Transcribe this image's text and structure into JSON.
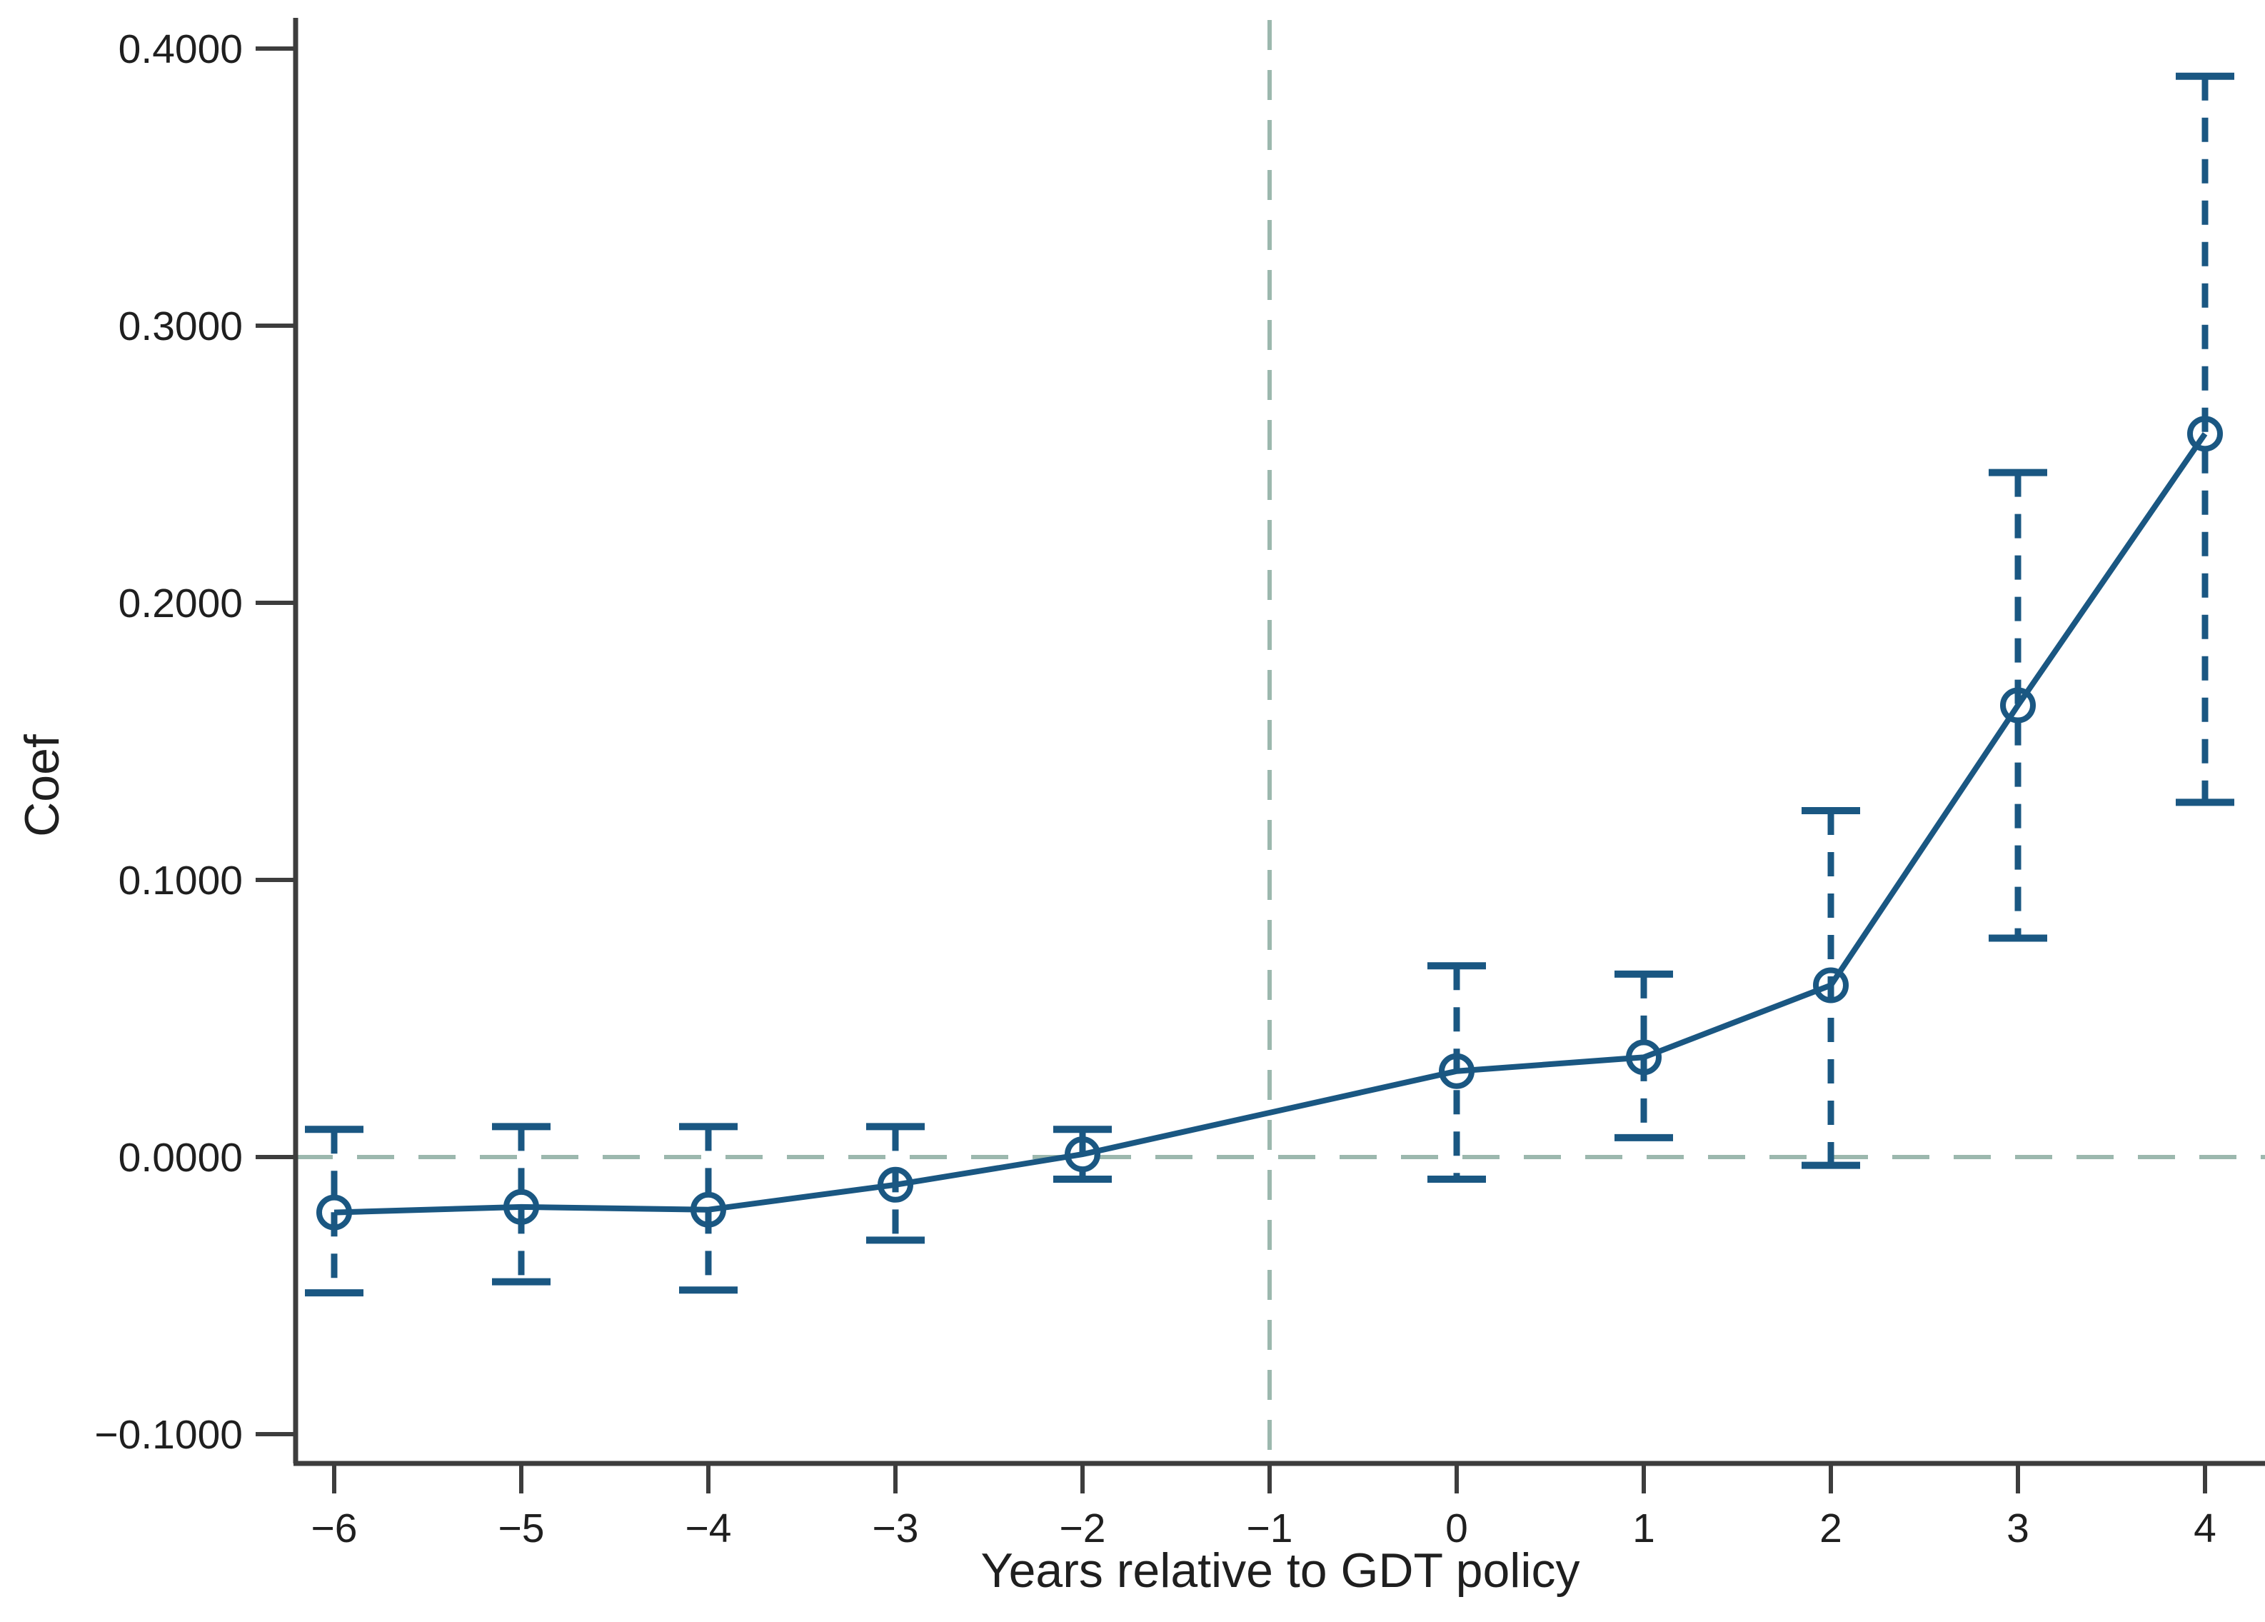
{
  "figure": {
    "type": "event-study coefficient plot",
    "background": "#ffffff"
  },
  "axes": {
    "y_title": "Coef",
    "x_title": "Years relative to GDT policy",
    "y_tick_labels": [
      "0.4000",
      "0.3000",
      "0.2000",
      "0.1000",
      "0.0000",
      "−0.1000"
    ],
    "y_tick_values": [
      0.4,
      0.3,
      0.2,
      0.1,
      0.0,
      -0.1
    ],
    "x_tick_labels": [
      "−6",
      "−5",
      "−4",
      "−3",
      "−2",
      "−1",
      "0",
      "1",
      "2",
      "3",
      "4"
    ],
    "x_tick_values": [
      -6,
      -5,
      -4,
      -3,
      -2,
      -1,
      0,
      1,
      2,
      3,
      4
    ]
  },
  "chart_data": {
    "type": "line",
    "title": "",
    "xlabel": "Years relative to GDT policy",
    "ylabel": "Coef",
    "xlim": [
      -6.25,
      4.35
    ],
    "ylim": [
      -0.112,
      0.411
    ],
    "grid": false,
    "legend": "none",
    "x": [
      -6,
      -5,
      -4,
      -3,
      -2,
      0,
      1,
      2,
      3,
      4
    ],
    "series": [
      {
        "name": "coefficient",
        "marker": "open-circle",
        "values": [
          -0.02,
          -0.018,
          -0.019,
          -0.01,
          0.001,
          0.031,
          0.036,
          0.062,
          0.163,
          0.261
        ],
        "ci_low": [
          -0.049,
          -0.045,
          -0.048,
          -0.03,
          -0.008,
          -0.008,
          0.007,
          -0.003,
          0.079,
          0.128
        ],
        "ci_high": [
          0.01,
          0.011,
          0.011,
          0.011,
          0.01,
          0.069,
          0.066,
          0.125,
          0.247,
          0.39
        ]
      }
    ],
    "reference_lines": {
      "horizontal_y": 0.0,
      "vertical_x": -1,
      "style": "dashed"
    },
    "omitted_base_year": -1
  },
  "colors": {
    "series_navy": "#1a5782",
    "reference_dash_green": "#9cb8ae",
    "axis_line": "#3d3d3d",
    "text": "#1f1f1f"
  }
}
